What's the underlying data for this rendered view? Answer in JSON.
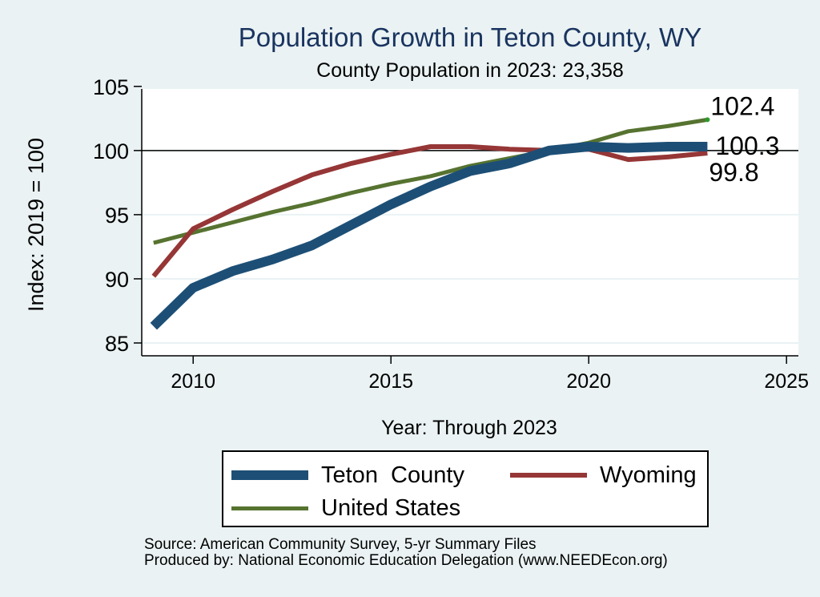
{
  "title": "Population Growth in Teton County, WY",
  "subtitle": "County Population in 2023: 23,358",
  "source_lines": [
    "Source: American Community Survey, 5-yr Summary Files",
    "Produced by: National Economic Education Delegation (www.NEEDEcon.org)"
  ],
  "chart_data": {
    "type": "line",
    "title": "Population Growth in Teton County, WY",
    "subtitle": "County Population in 2023: 23,358",
    "xlabel": "Year: Through 2023",
    "ylabel": "Index: 2019 = 100",
    "xlim": [
      2008.7,
      2025.3
    ],
    "ylim": [
      84,
      104.8
    ],
    "xticks": [
      2010,
      2015,
      2020,
      2025
    ],
    "yticks": [
      85,
      90,
      95,
      100,
      105
    ],
    "reference_line": 100,
    "grid": true,
    "legend_position": "bottom",
    "x": [
      2009,
      2010,
      2011,
      2012,
      2013,
      2014,
      2015,
      2016,
      2017,
      2018,
      2019,
      2020,
      2021,
      2022,
      2023
    ],
    "series": [
      {
        "name": "Teton  County",
        "color": "#1d4f76",
        "values": [
          86.3,
          89.3,
          90.6,
          91.5,
          92.6,
          94.2,
          95.8,
          97.2,
          98.4,
          99.0,
          100.0,
          100.3,
          100.2,
          100.3,
          100.3
        ],
        "end_label": "100.3"
      },
      {
        "name": "Wyoming",
        "color": "#963636",
        "values": [
          90.2,
          93.9,
          95.4,
          96.8,
          98.1,
          99.0,
          99.7,
          100.3,
          100.3,
          100.1,
          100.0,
          100.1,
          99.3,
          99.5,
          99.8
        ],
        "end_label": "99.8"
      },
      {
        "name": "United States",
        "color": "#567330",
        "values": [
          92.8,
          93.6,
          94.4,
          95.2,
          95.9,
          96.7,
          97.4,
          98.0,
          98.8,
          99.4,
          100.0,
          100.6,
          101.5,
          101.9,
          102.4
        ],
        "end_label": "102.4"
      }
    ]
  }
}
